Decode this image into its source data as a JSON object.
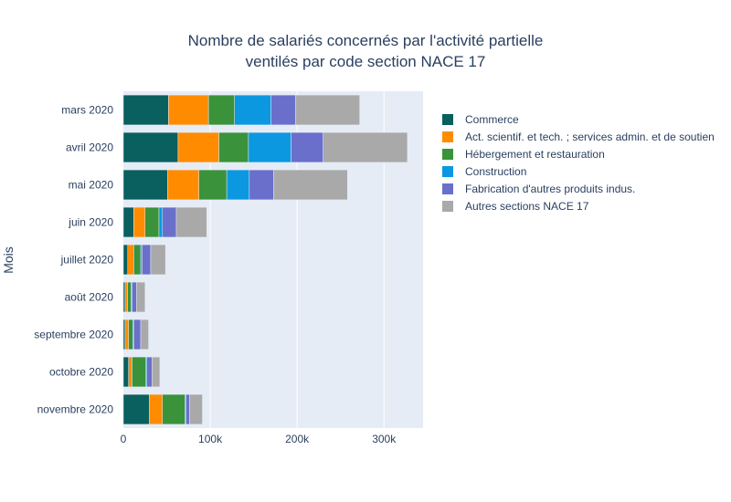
{
  "chart_data": {
    "type": "bar",
    "orientation": "horizontal",
    "stacked": true,
    "title": [
      "Nombre de salariés concernés par l'activité partielle",
      "ventilés par code section NACE 17"
    ],
    "ylabel": "Mois",
    "xlabel": "",
    "categories": [
      "mars 2020",
      "avril 2020",
      "mai 2020",
      "juin 2020",
      "juillet 2020",
      "août 2020",
      "septembre 2020",
      "octobre 2020",
      "novembre 2020"
    ],
    "xlim": [
      0,
      345000
    ],
    "xticks": [
      {
        "value": 0,
        "label": "0"
      },
      {
        "value": 100000,
        "label": "100k"
      },
      {
        "value": 200000,
        "label": "200k"
      },
      {
        "value": 300000,
        "label": "300k"
      }
    ],
    "grid": true,
    "legend_position": "right",
    "series": [
      {
        "name": "Commerce",
        "color": "#0a5f5f",
        "values": [
          52000,
          63000,
          51000,
          12000,
          5000,
          2000,
          2000,
          6000,
          30000
        ]
      },
      {
        "name": "Act. scientif. et tech. ; services admin. et de soutien",
        "color": "#ff8c00",
        "values": [
          46000,
          47000,
          36000,
          13000,
          7000,
          3000,
          4000,
          4000,
          15000
        ]
      },
      {
        "name": "Hébergement et restauration",
        "color": "#3a923a",
        "values": [
          30000,
          34000,
          32000,
          16000,
          8000,
          4000,
          5000,
          16000,
          26000
        ]
      },
      {
        "name": "Construction",
        "color": "#0b98e0",
        "values": [
          42000,
          49000,
          26000,
          4000,
          1500,
          1000,
          1000,
          1000,
          1000
        ]
      },
      {
        "name": "Fabrication d'autres produits indus.",
        "color": "#6a6fcb",
        "values": [
          28000,
          37000,
          28000,
          16000,
          10000,
          5000,
          8000,
          6000,
          4000
        ]
      },
      {
        "name": "Autres sections NACE 17",
        "color": "#a9a9a9",
        "values": [
          74000,
          97000,
          85000,
          35000,
          17000,
          10000,
          9000,
          9000,
          15000
        ]
      }
    ]
  }
}
